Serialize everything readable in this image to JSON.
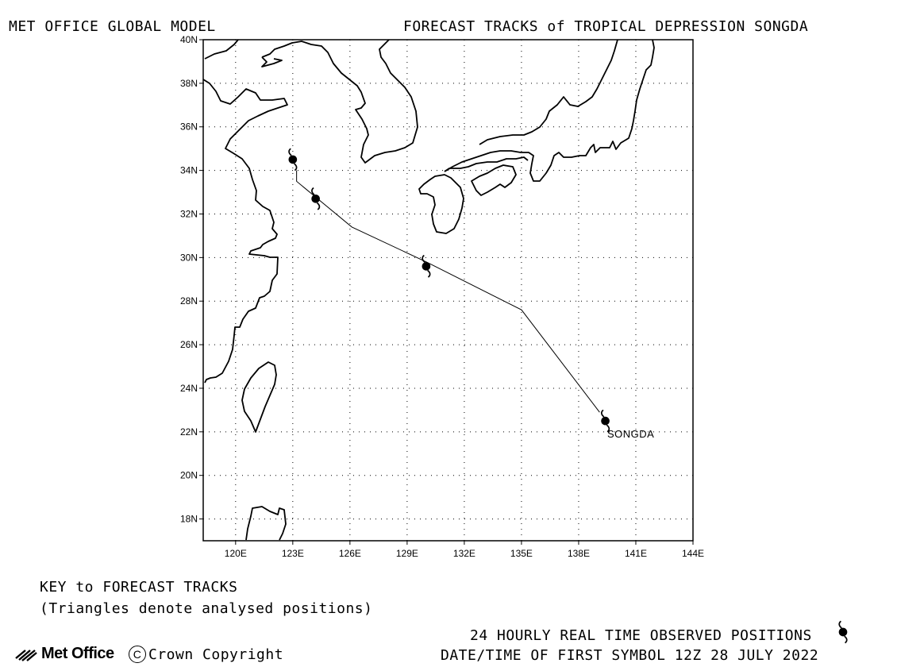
{
  "header": {
    "left_title": "MET OFFICE GLOBAL MODEL",
    "right_title": "FORECAST TRACKS of TROPICAL DEPRESSION SONGDA"
  },
  "map": {
    "lon_range": [
      118.3,
      144
    ],
    "lat_range": [
      17,
      40
    ],
    "lat_ticks": [
      "40N",
      "38N",
      "36N",
      "34N",
      "32N",
      "30N",
      "28N",
      "26N",
      "24N",
      "22N",
      "20N",
      "18N"
    ],
    "lon_ticks": [
      "120E",
      "123E",
      "126E",
      "129E",
      "132E",
      "135E",
      "138E",
      "141E",
      "144E"
    ],
    "grid": true,
    "storm_label": "SONGDA",
    "track": [
      {
        "lon": 139.1,
        "lat": 22.9
      },
      {
        "lon": 135.0,
        "lat": 27.6
      },
      {
        "lon": 130.0,
        "lat": 29.8
      },
      {
        "lon": 126.1,
        "lat": 31.4
      },
      {
        "lon": 123.2,
        "lat": 33.5
      },
      {
        "lon": 123.2,
        "lat": 34.0
      }
    ],
    "observed_positions": [
      {
        "lon": 139.4,
        "lat": 22.5
      },
      {
        "lon": 130.0,
        "lat": 29.6
      },
      {
        "lon": 124.2,
        "lat": 32.7
      },
      {
        "lon": 123.0,
        "lat": 34.5
      }
    ]
  },
  "key": {
    "title": "KEY to FORECAST TRACKS",
    "note": "(Triangles denote analysed positions)"
  },
  "footer": {
    "observed_label": "24 HOURLY REAL TIME OBSERVED POSITIONS",
    "first_symbol": "DATE/TIME OF FIRST SYMBOL 12Z 28 JULY 2022",
    "logo_text": "Met Office",
    "copyright": "Crown Copyright",
    "copyright_symbol": "C"
  },
  "icons": {
    "storm": "tropical-cyclone-icon",
    "logo": "met-office-logo-icon"
  }
}
